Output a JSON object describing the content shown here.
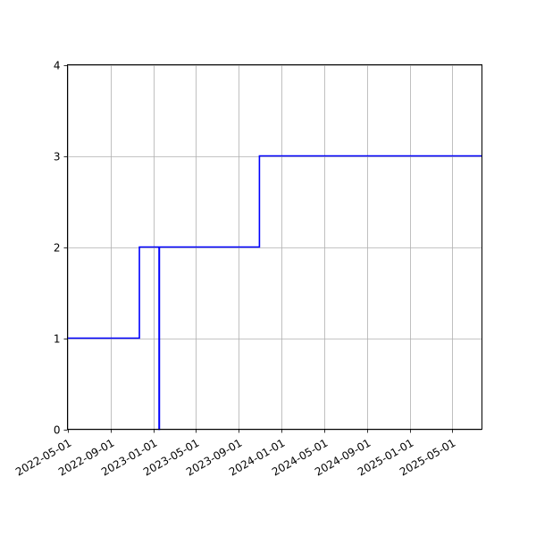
{
  "chart_data": {
    "type": "line",
    "title": "",
    "xlabel": "",
    "ylabel": "",
    "x_axis_type": "date",
    "xlim": [
      "2022-05-01",
      "2025-07-25"
    ],
    "ylim": [
      0,
      4
    ],
    "grid": true,
    "line_style": "step",
    "x_ticks": [
      "2022-05-01",
      "2022-09-01",
      "2023-01-01",
      "2023-05-01",
      "2023-09-01",
      "2024-01-01",
      "2024-05-01",
      "2024-09-01",
      "2025-01-01",
      "2025-05-01"
    ],
    "y_ticks": [
      "0",
      "1",
      "2",
      "3",
      "4"
    ],
    "series": [
      {
        "name": "",
        "color": "#0000ff",
        "points": [
          {
            "x": "2022-05-01",
            "y": 1
          },
          {
            "x": "2022-11-22",
            "y": 1
          },
          {
            "x": "2022-11-22",
            "y": 2
          },
          {
            "x": "2023-01-17",
            "y": 2
          },
          {
            "x": "2023-01-17",
            "y": 0
          },
          {
            "x": "2023-01-18",
            "y": 0
          },
          {
            "x": "2023-01-18",
            "y": 2
          },
          {
            "x": "2023-10-30",
            "y": 2
          },
          {
            "x": "2023-10-30",
            "y": 3
          },
          {
            "x": "2025-07-25",
            "y": 3
          }
        ]
      }
    ]
  }
}
